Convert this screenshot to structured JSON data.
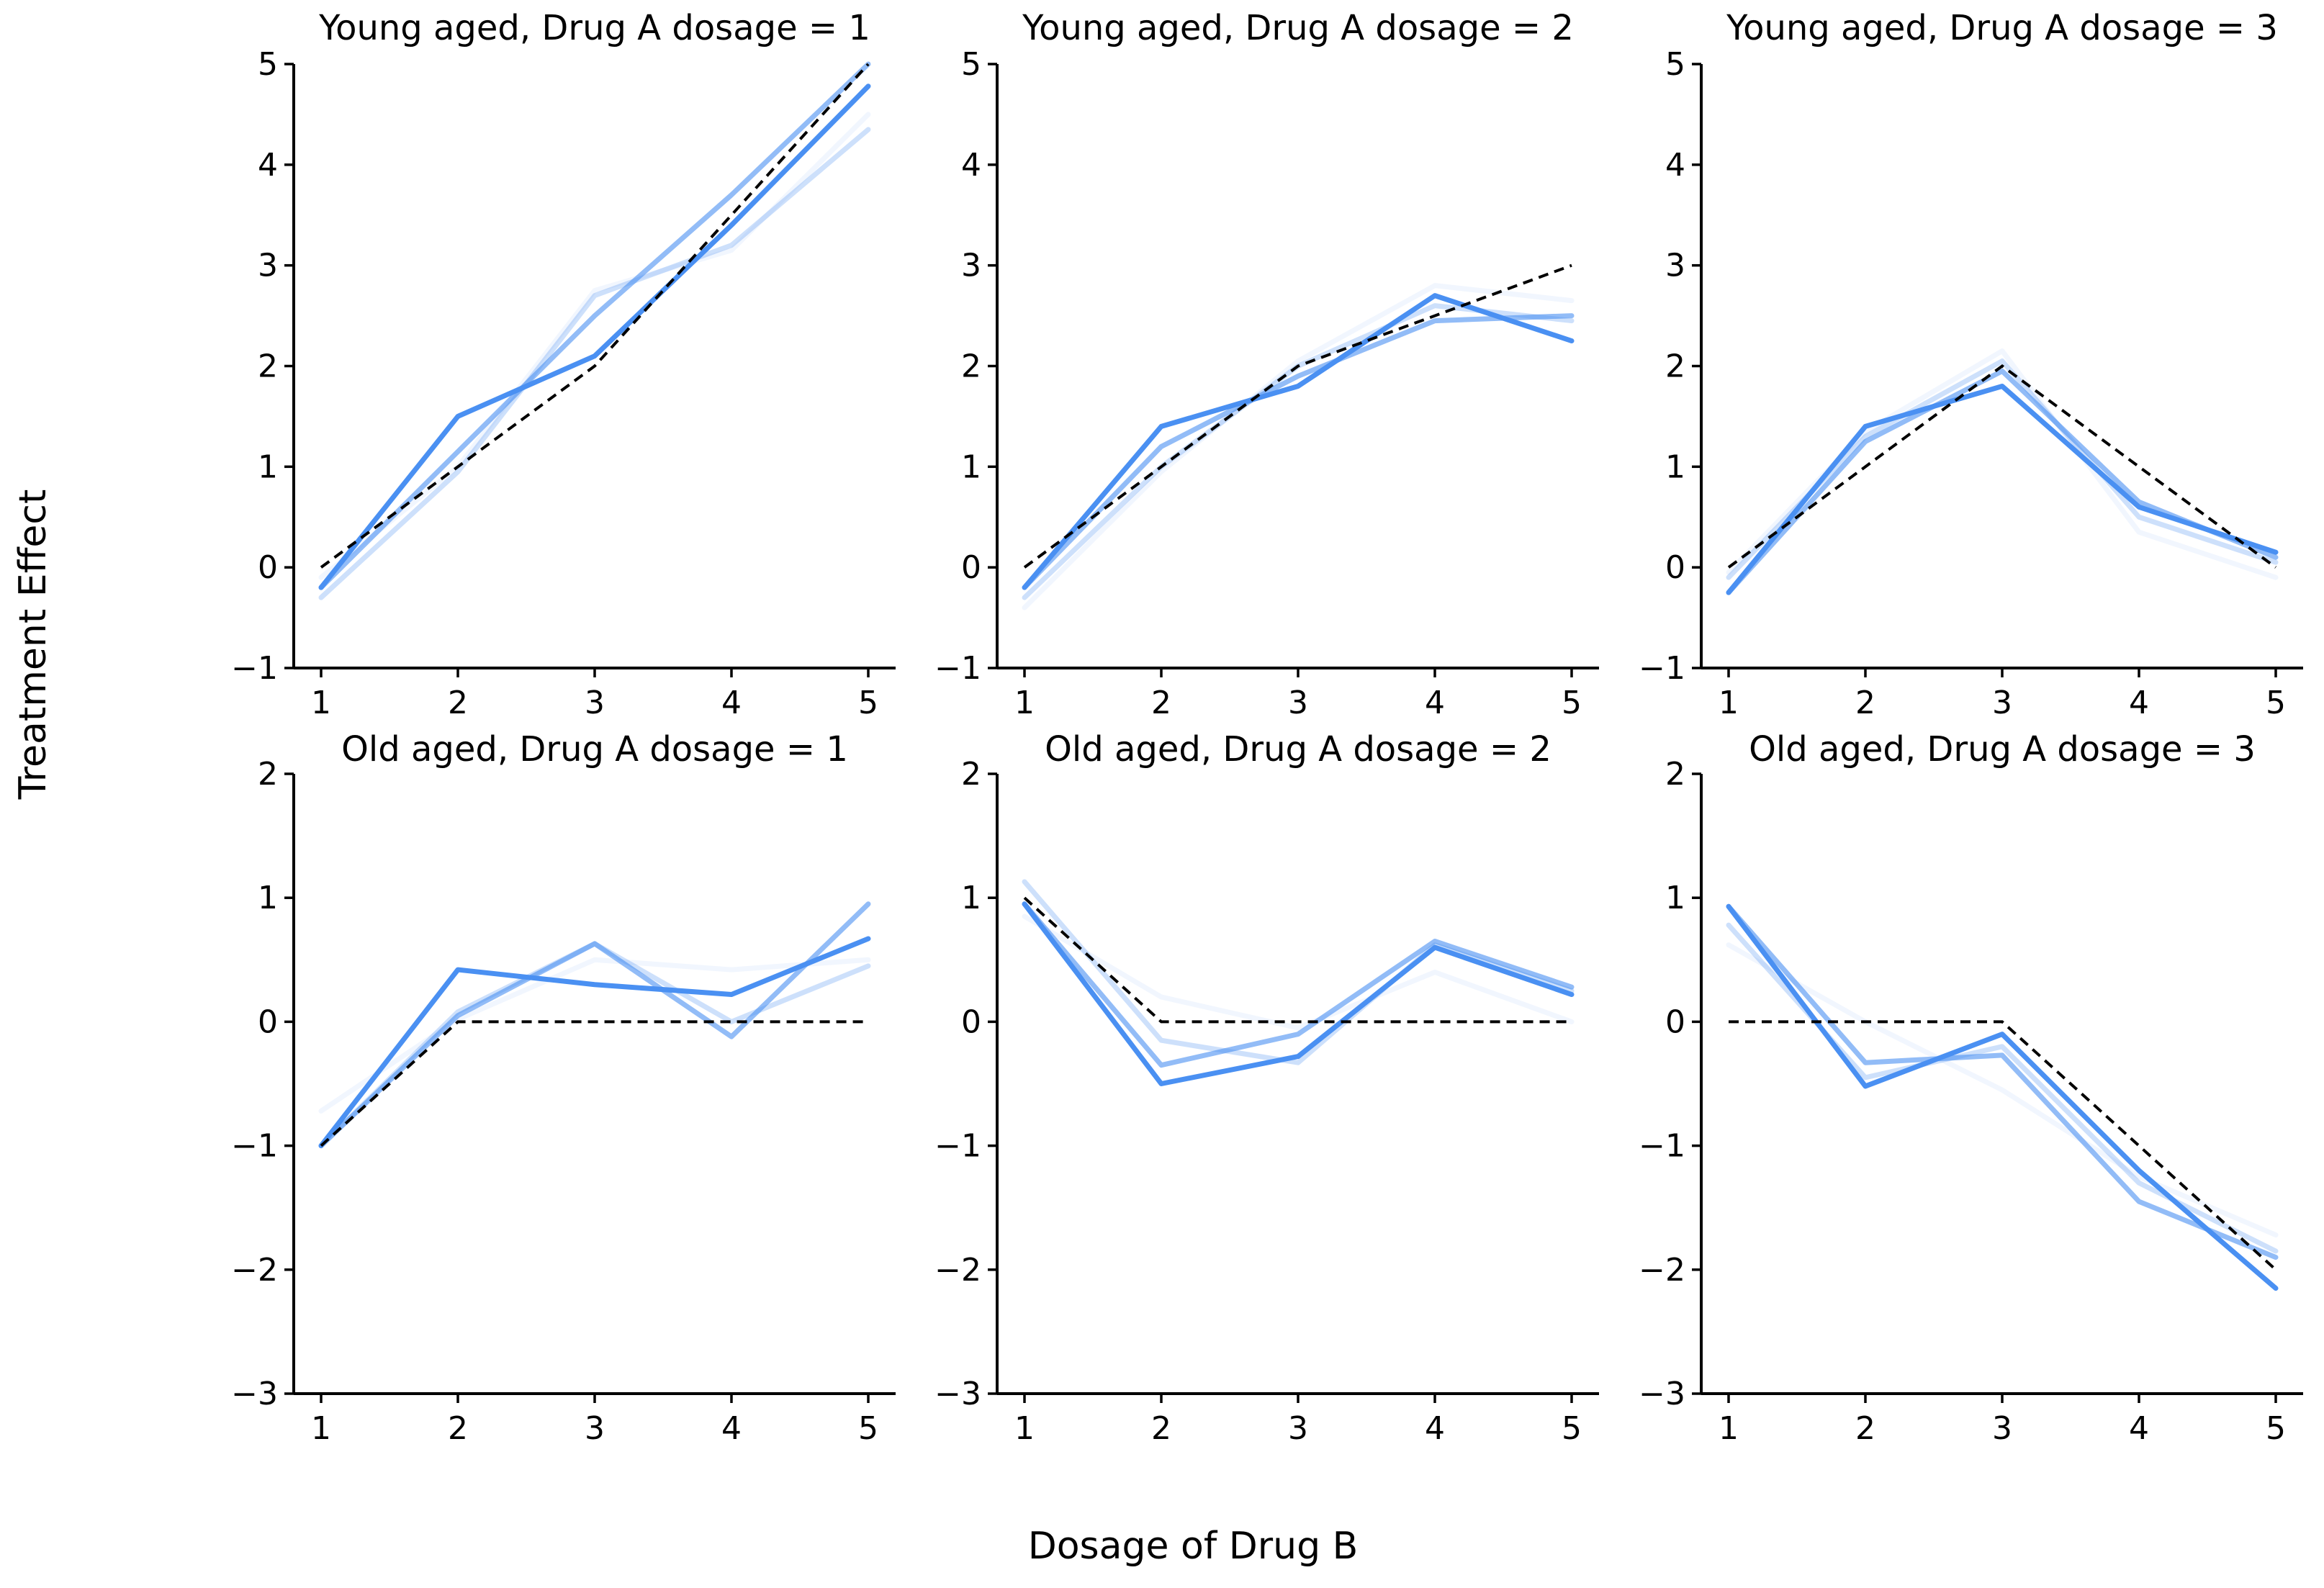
{
  "figure_labels": {
    "ylabel": "Treatment Effect",
    "xlabel": "Dosage of Drug B"
  },
  "style": {
    "line_color": "#4a90f2",
    "dashed_color": "#000000",
    "background": "#ffffff"
  },
  "chart_data": [
    {
      "type": "line",
      "title": "Young aged, Drug A dosage = 1",
      "x": [
        1,
        2,
        3,
        4,
        5
      ],
      "xticks": [
        "1",
        "2",
        "3",
        "4",
        "5"
      ],
      "ylim": [
        -1,
        5
      ],
      "yticks": [
        -1,
        0,
        1,
        2,
        3,
        4,
        5
      ],
      "grid": false,
      "legend": "none",
      "series": [
        {
          "name": "draw-lightest",
          "style": "solid",
          "alpha": 0.08,
          "values": [
            -0.1,
            1.0,
            2.75,
            3.15,
            4.5
          ]
        },
        {
          "name": "draw-light",
          "style": "solid",
          "alpha": 0.28,
          "values": [
            -0.3,
            0.95,
            2.7,
            3.2,
            4.35
          ]
        },
        {
          "name": "draw-medium",
          "style": "solid",
          "alpha": 0.6,
          "values": [
            -0.2,
            1.15,
            2.5,
            3.7,
            5.0
          ]
        },
        {
          "name": "draw-dark",
          "style": "solid",
          "alpha": 1.0,
          "values": [
            -0.2,
            1.5,
            2.1,
            3.4,
            4.78
          ]
        },
        {
          "name": "true-effect",
          "style": "dashed",
          "alpha": 1.0,
          "values": [
            0,
            1,
            2,
            3.5,
            5
          ]
        }
      ]
    },
    {
      "type": "line",
      "title": "Young aged, Drug A dosage = 2",
      "x": [
        1,
        2,
        3,
        4,
        5
      ],
      "xticks": [
        "1",
        "2",
        "3",
        "4",
        "5"
      ],
      "ylim": [
        -1,
        5
      ],
      "yticks": [
        -1,
        0,
        1,
        2,
        3,
        4,
        5
      ],
      "grid": false,
      "legend": "none",
      "series": [
        {
          "name": "draw-lightest",
          "style": "solid",
          "alpha": 0.08,
          "values": [
            -0.4,
            0.95,
            2.05,
            2.8,
            2.65
          ]
        },
        {
          "name": "draw-light",
          "style": "solid",
          "alpha": 0.28,
          "values": [
            -0.3,
            1.0,
            2.0,
            2.6,
            2.45
          ]
        },
        {
          "name": "draw-medium",
          "style": "solid",
          "alpha": 0.6,
          "values": [
            -0.2,
            1.2,
            1.9,
            2.45,
            2.5
          ]
        },
        {
          "name": "draw-dark",
          "style": "solid",
          "alpha": 1.0,
          "values": [
            -0.2,
            1.4,
            1.8,
            2.7,
            2.25
          ]
        },
        {
          "name": "true-effect",
          "style": "dashed",
          "alpha": 1.0,
          "values": [
            0,
            1,
            2,
            2.5,
            3
          ]
        }
      ]
    },
    {
      "type": "line",
      "title": "Young aged, Drug A dosage = 3",
      "x": [
        1,
        2,
        3,
        4,
        5
      ],
      "xticks": [
        "1",
        "2",
        "3",
        "4",
        "5"
      ],
      "ylim": [
        -1,
        5
      ],
      "yticks": [
        -1,
        0,
        1,
        2,
        3,
        4,
        5
      ],
      "grid": false,
      "legend": "none",
      "series": [
        {
          "name": "draw-lightest",
          "style": "solid",
          "alpha": 0.08,
          "values": [
            -0.05,
            1.35,
            2.15,
            0.35,
            -0.1
          ]
        },
        {
          "name": "draw-light",
          "style": "solid",
          "alpha": 0.28,
          "values": [
            -0.1,
            1.3,
            2.05,
            0.5,
            0.05
          ]
        },
        {
          "name": "draw-medium",
          "style": "solid",
          "alpha": 0.6,
          "values": [
            -0.25,
            1.25,
            1.95,
            0.65,
            0.1
          ]
        },
        {
          "name": "draw-dark",
          "style": "solid",
          "alpha": 1.0,
          "values": [
            -0.25,
            1.4,
            1.8,
            0.6,
            0.15
          ]
        },
        {
          "name": "true-effect",
          "style": "dashed",
          "alpha": 1.0,
          "values": [
            0,
            1,
            2,
            1,
            0
          ]
        }
      ]
    },
    {
      "type": "line",
      "title": "Old aged, Drug A dosage = 1",
      "x": [
        1,
        2,
        3,
        4,
        5
      ],
      "xticks": [
        "1",
        "2",
        "3",
        "4",
        "5"
      ],
      "ylim": [
        -3,
        2
      ],
      "yticks": [
        -3,
        -2,
        -1,
        0,
        1,
        2
      ],
      "grid": false,
      "legend": "none",
      "series": [
        {
          "name": "draw-lightest",
          "style": "solid",
          "alpha": 0.08,
          "values": [
            -0.72,
            0.02,
            0.5,
            0.42,
            0.5
          ]
        },
        {
          "name": "draw-light",
          "style": "solid",
          "alpha": 0.28,
          "values": [
            -1.0,
            0.08,
            0.63,
            0.0,
            0.45
          ]
        },
        {
          "name": "draw-medium",
          "style": "solid",
          "alpha": 0.6,
          "values": [
            -1.0,
            0.05,
            0.63,
            -0.12,
            0.95
          ]
        },
        {
          "name": "draw-dark",
          "style": "solid",
          "alpha": 1.0,
          "values": [
            -1.0,
            0.42,
            0.3,
            0.22,
            0.67
          ]
        },
        {
          "name": "true-effect",
          "style": "dashed",
          "alpha": 1.0,
          "values": [
            -1,
            0,
            0,
            0,
            0
          ]
        }
      ]
    },
    {
      "type": "line",
      "title": "Old aged, Drug A dosage = 2",
      "x": [
        1,
        2,
        3,
        4,
        5
      ],
      "xticks": [
        "1",
        "2",
        "3",
        "4",
        "5"
      ],
      "ylim": [
        -3,
        2
      ],
      "yticks": [
        -3,
        -2,
        -1,
        0,
        1,
        2
      ],
      "grid": false,
      "legend": "none",
      "series": [
        {
          "name": "draw-lightest",
          "style": "solid",
          "alpha": 0.08,
          "values": [
            0.85,
            0.2,
            -0.05,
            0.4,
            0.0
          ]
        },
        {
          "name": "draw-light",
          "style": "solid",
          "alpha": 0.28,
          "values": [
            1.13,
            -0.15,
            -0.33,
            0.62,
            0.25
          ]
        },
        {
          "name": "draw-medium",
          "style": "solid",
          "alpha": 0.6,
          "values": [
            0.95,
            -0.35,
            -0.1,
            0.65,
            0.28
          ]
        },
        {
          "name": "draw-dark",
          "style": "solid",
          "alpha": 1.0,
          "values": [
            0.95,
            -0.5,
            -0.28,
            0.6,
            0.22
          ]
        },
        {
          "name": "true-effect",
          "style": "dashed",
          "alpha": 1.0,
          "values": [
            1,
            0,
            0,
            0,
            0
          ]
        }
      ]
    },
    {
      "type": "line",
      "title": "Old aged, Drug A dosage = 3",
      "x": [
        1,
        2,
        3,
        4,
        5
      ],
      "xticks": [
        "1",
        "2",
        "3",
        "4",
        "5"
      ],
      "ylim": [
        -3,
        2
      ],
      "yticks": [
        -3,
        -2,
        -1,
        0,
        1,
        2
      ],
      "grid": false,
      "legend": "none",
      "series": [
        {
          "name": "draw-lightest",
          "style": "solid",
          "alpha": 0.08,
          "values": [
            0.62,
            0.0,
            -0.55,
            -1.25,
            -1.72
          ]
        },
        {
          "name": "draw-light",
          "style": "solid",
          "alpha": 0.28,
          "values": [
            0.78,
            -0.45,
            -0.2,
            -1.3,
            -1.85
          ]
        },
        {
          "name": "draw-medium",
          "style": "solid",
          "alpha": 0.6,
          "values": [
            0.93,
            -0.33,
            -0.27,
            -1.45,
            -1.9
          ]
        },
        {
          "name": "draw-dark",
          "style": "solid",
          "alpha": 1.0,
          "values": [
            0.93,
            -0.52,
            -0.1,
            -1.2,
            -2.15
          ]
        },
        {
          "name": "true-effect",
          "style": "dashed",
          "alpha": 1.0,
          "values": [
            0,
            0,
            0,
            -1,
            -2
          ]
        }
      ]
    }
  ]
}
